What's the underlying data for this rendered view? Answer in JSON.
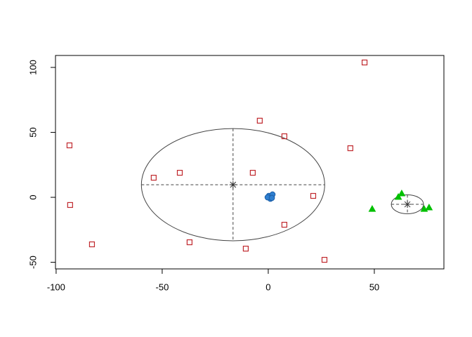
{
  "chart_data": {
    "type": "scatter",
    "xlim": [
      -100.3,
      82.8
    ],
    "ylim": [
      -55.1,
      109.2
    ],
    "xticks": [
      -100,
      -50,
      0,
      50
    ],
    "yticks": [
      -50,
      0,
      50,
      100
    ],
    "series": [
      {
        "color": "#c0282d",
        "marker": "square",
        "x": [
          45.4,
          -4,
          7.6,
          -93.7,
          38.7,
          -7.3,
          -41.7,
          -54,
          21.2,
          -93.4,
          7.6,
          -37.1,
          -83.1,
          -10.6,
          26.5
        ],
        "values": [
          103.8,
          59,
          47,
          40,
          37.8,
          18.9,
          18.9,
          15.1,
          1.1,
          -5.9,
          -21.1,
          -34.6,
          -36.2,
          -39.5,
          -48.1
        ]
      },
      {
        "color": "#2f7fd0",
        "marker": "circle",
        "x": [
          0.3,
          2,
          1,
          -0.3,
          1.7
        ],
        "values": [
          1.1,
          2.2,
          -1.1,
          0,
          -0.5
        ]
      },
      {
        "color": "#00c000",
        "marker": "triangle",
        "x": [
          49,
          61.3,
          62.9,
          73.5,
          75.8
        ],
        "values": [
          -9.2,
          0,
          2.7,
          -9.2,
          -8.1
        ]
      }
    ],
    "ellipses": [
      {
        "cx": -16.6,
        "cy": 9.7,
        "rx": 43.2,
        "ry": 43.2
      },
      {
        "cx": 65.6,
        "cy": -5.4,
        "rx": 7.6,
        "ry": 7.3
      }
    ]
  }
}
